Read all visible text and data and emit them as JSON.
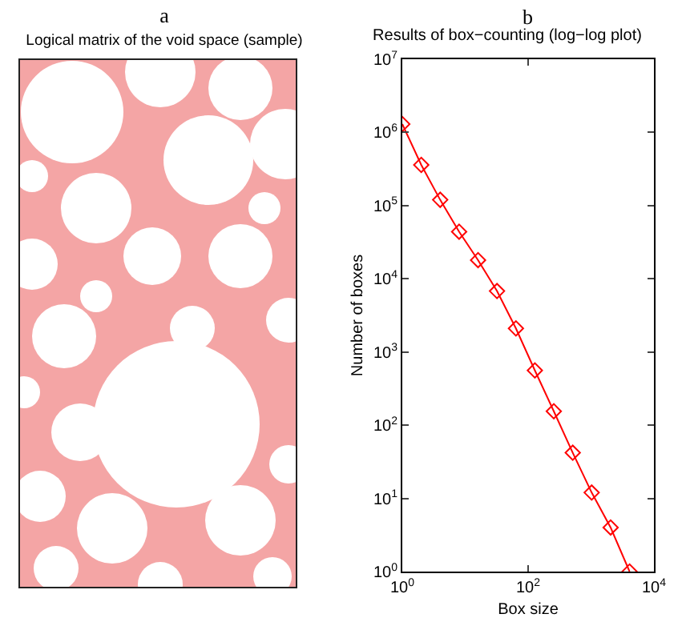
{
  "chart_data": [
    {
      "type": "other",
      "title": "Logical matrix of the void space (sample)",
      "annotations": [
        "a"
      ]
    },
    {
      "type": "line",
      "title": "Results of box−counting (log−log plot)",
      "annotations": [
        "b"
      ],
      "xlabel": "Box size",
      "ylabel": "Number of boxes",
      "log": "xy",
      "marker": "diamond",
      "line_style": "solid",
      "x": [
        1,
        2,
        4,
        8,
        16,
        32,
        64,
        128,
        256,
        512,
        1024,
        2048,
        4096
      ],
      "series": [
        {
          "color": "#ff0000",
          "values": [
            1300000,
            360000,
            120000,
            44000,
            18000,
            6800,
            2100,
            560,
            155,
            42,
            12,
            4,
            1
          ]
        }
      ],
      "xlim": [
        1,
        10000
      ],
      "xticks": [
        {
          "value": 1,
          "label": "10$^{0}$"
        },
        {
          "value": 100,
          "label": "10$^{2}$"
        },
        {
          "value": 10000,
          "label": "10$^{4}$"
        }
      ],
      "ylim": [
        1,
        10000000
      ],
      "yticks": [
        {
          "value": 1,
          "label": "10$^{0}$"
        },
        {
          "value": 10,
          "label": "10$^{1}$"
        },
        {
          "value": 100,
          "label": "10$^{2}$"
        },
        {
          "value": 1000,
          "label": "10$^{3}$"
        },
        {
          "value": 10000,
          "label": "10$^{4}$"
        },
        {
          "value": 100000,
          "label": "10$^{5}$"
        },
        {
          "value": 1000000,
          "label": "10$^{6}$"
        },
        {
          "value": 10000000,
          "label": "10$^{7}$"
        }
      ]
    }
  ]
}
